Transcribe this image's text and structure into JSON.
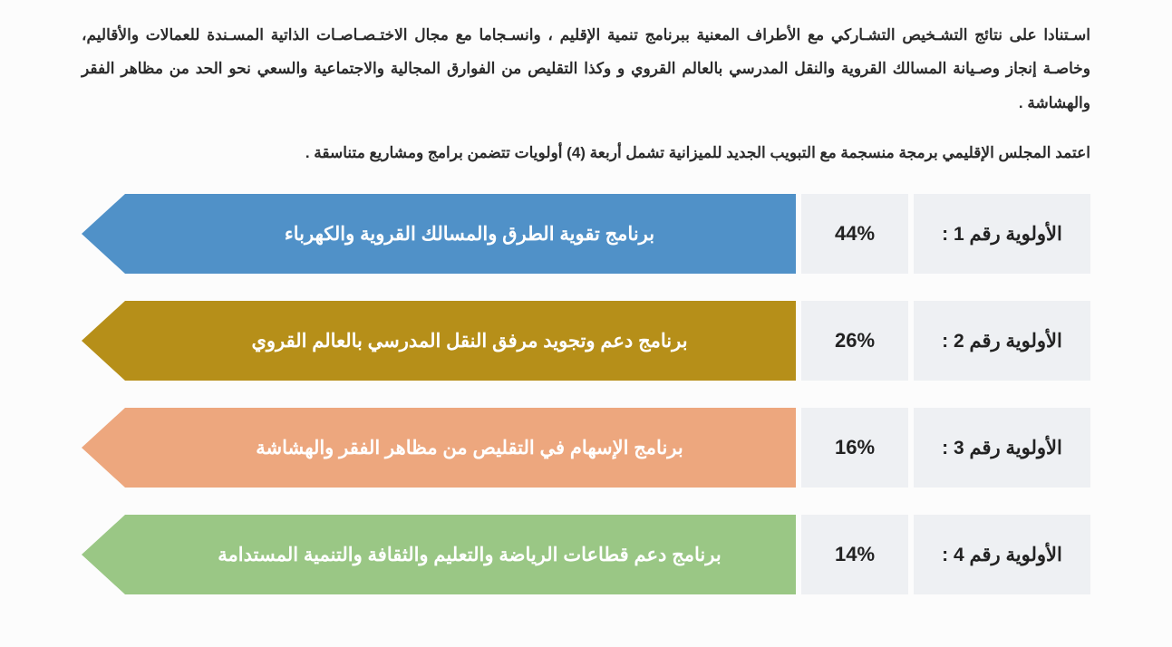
{
  "intro_paragraph1": "اسـتنادا على نتائج التشـخيص التشـاركي مع الأطراف المعنية ببرنامج تنمية الإقليم ، وانسـجاما مع مجال الاختـصـاصـات الذاتية المسـندة للعمالات والأقاليم، وخاصـة إنجاز وصـيانة المسالك القروية والنقل المدرسي بالعالم القروي و وكذا التقليص من الفوارق المجالية والاجتماعية   والسعي نحو الحد من مظاهر الفقر والهشاشة .",
  "intro_paragraph2": "اعتمد المجلس الإقليمي برمجة منسجمة مع التبويب الجديد للميزانية تشمل  أربعة (4) أولويات تتضمن  برامج ومشاريع متناسقة .",
  "label_box_bg": "#eef0f3",
  "text_color": "#222222",
  "arrow_text_color": "#ffffff",
  "priorities": [
    {
      "label": "الأولوية رقم 1 :",
      "percent": "44%",
      "program": "برنامج تقوية الطرق والمسالك القروية والكهرباء",
      "color": "#5091c8"
    },
    {
      "label": "الأولوية رقم 2 :",
      "percent": "26%",
      "program": "برنامج  دعم وتجويد مرفق  النقل المدرسي بالعالم القروي",
      "color": "#b68f19"
    },
    {
      "label": "الأولوية رقم 3 :",
      "percent": "16%",
      "program": "برنامج الإسهام في التقليص من مظاهر الفقر والهشاشة",
      "color": "#eda77e"
    },
    {
      "label": "الأولوية رقم 4 :",
      "percent": "14%",
      "program": "برنامج دعم قطاعات الرياضة والتعليم والثقافة والتنمية المستدامة",
      "color": "#9ac785"
    }
  ]
}
